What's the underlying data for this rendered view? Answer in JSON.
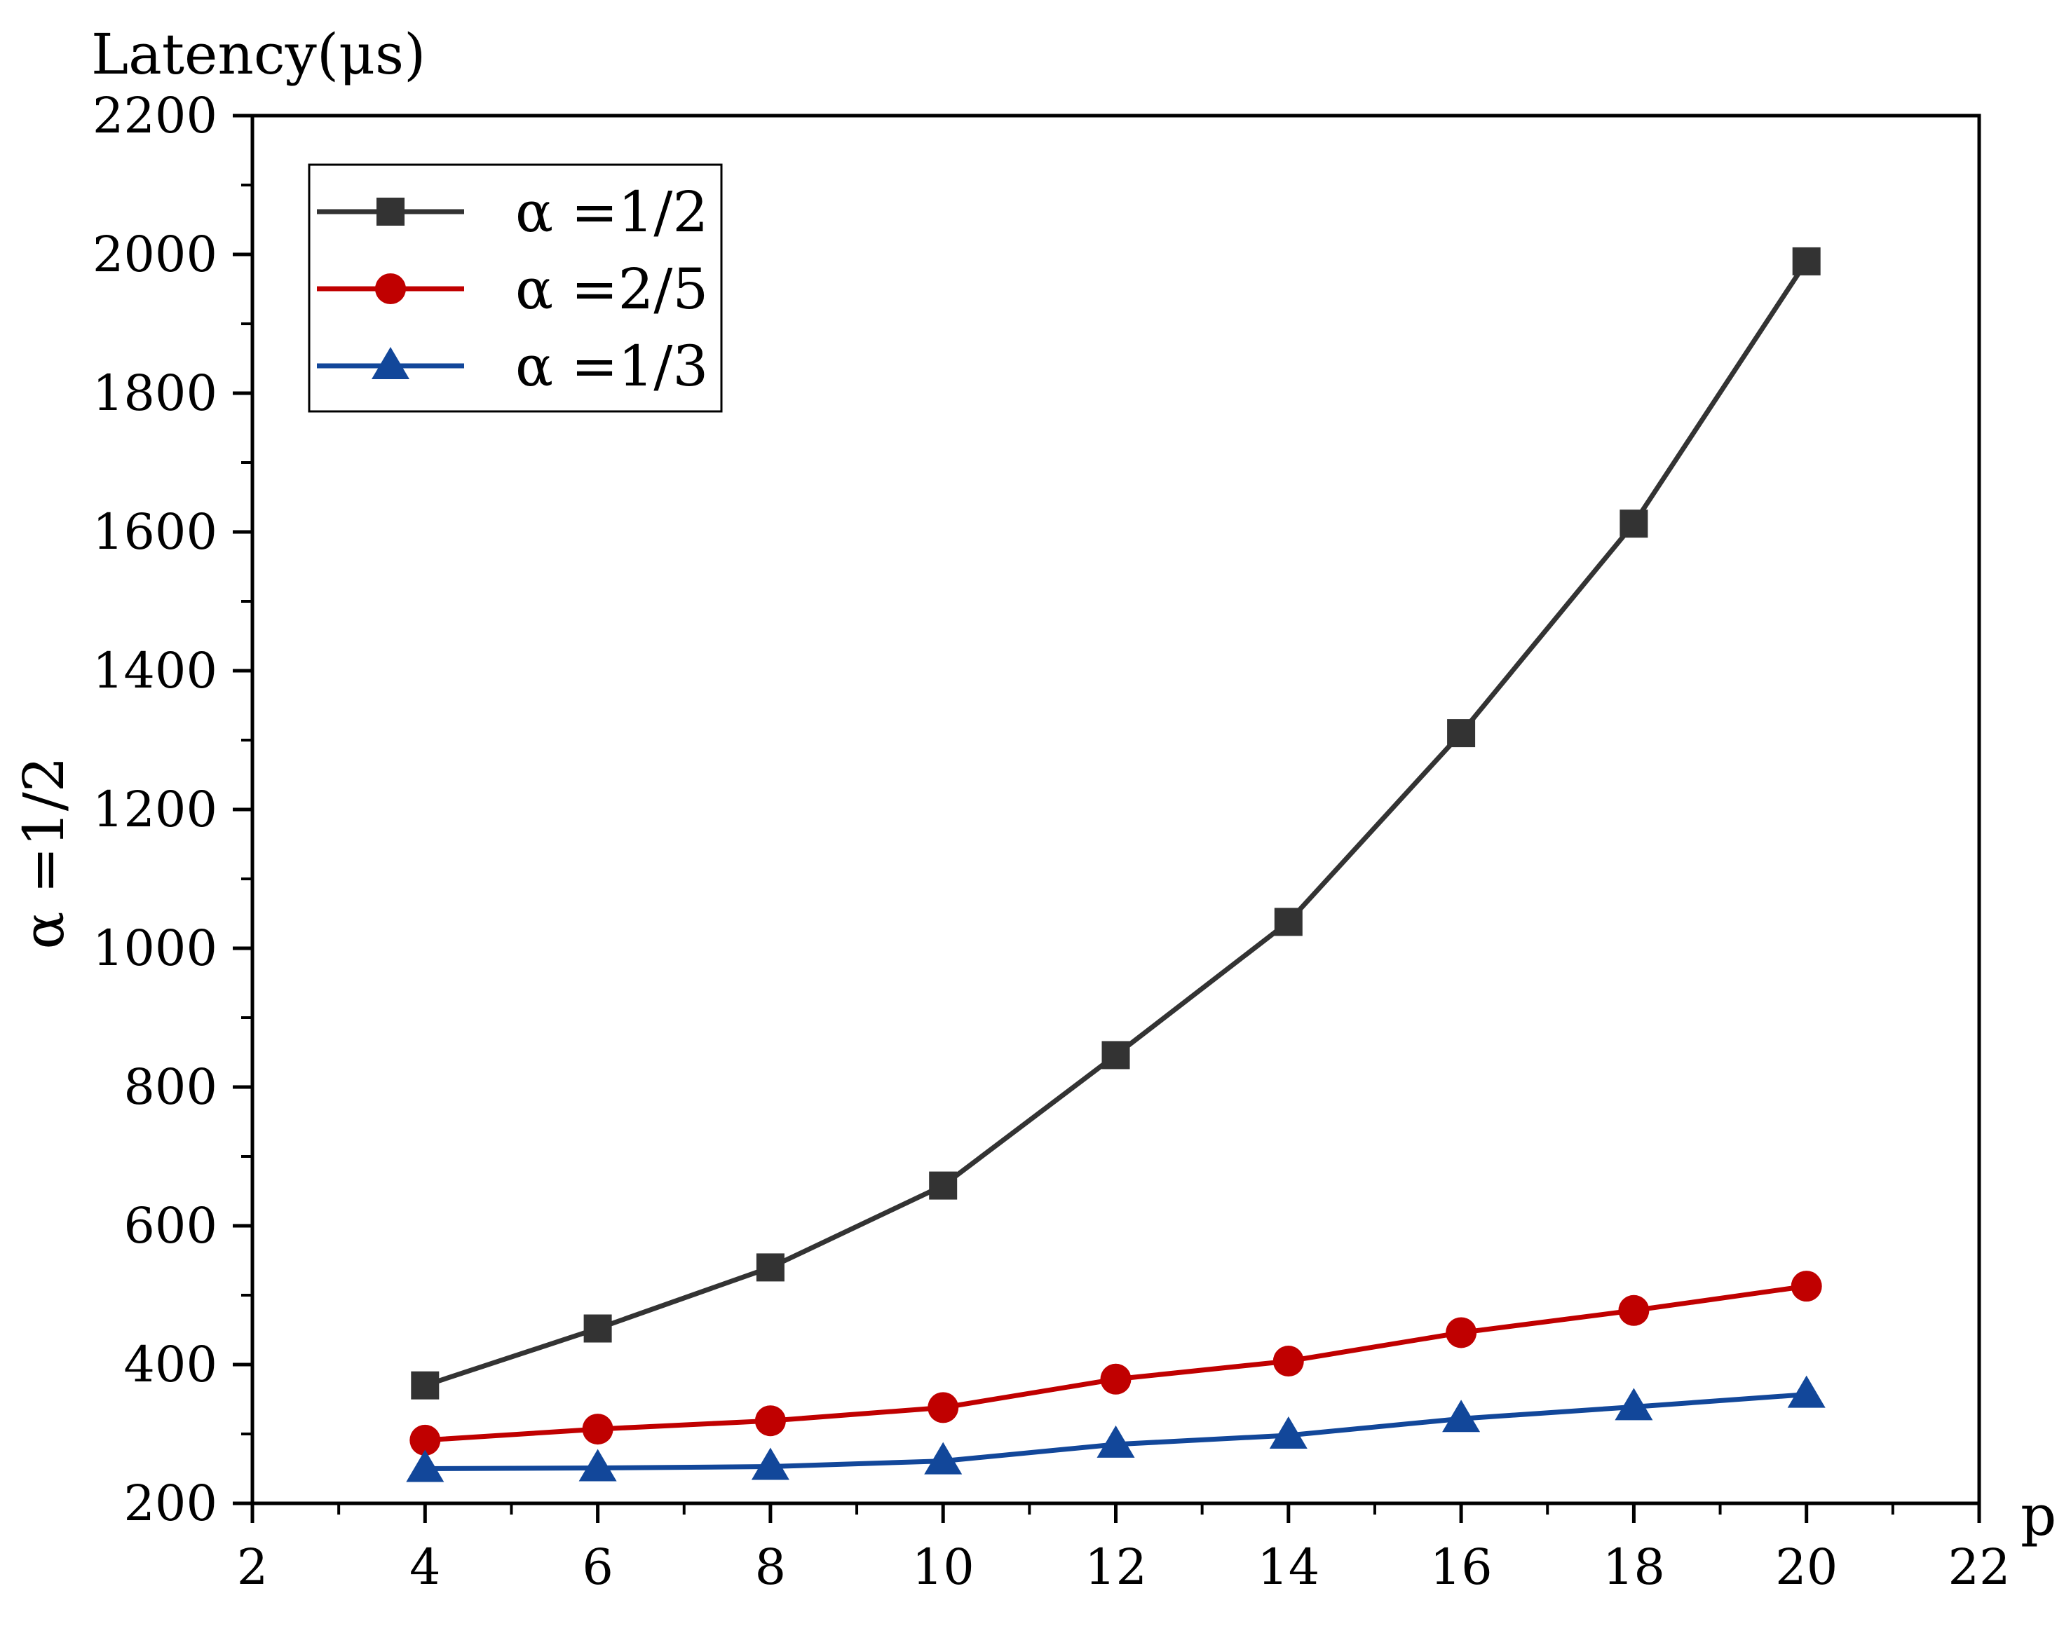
{
  "chart_data": {
    "type": "line",
    "title": "",
    "ylabel_top": "Latency(μs)",
    "ylabel_side": "α =1/2",
    "xlabel": "p",
    "xlim": [
      2,
      22
    ],
    "ylim": [
      200,
      2200
    ],
    "xticks": [
      2,
      4,
      6,
      8,
      10,
      12,
      14,
      16,
      18,
      20,
      22
    ],
    "yticks": [
      200,
      400,
      600,
      800,
      1000,
      1200,
      1400,
      1600,
      1800,
      2000,
      2200
    ],
    "grid": false,
    "legend_position": "top-left",
    "x": [
      4,
      6,
      8,
      10,
      12,
      14,
      16,
      18,
      20
    ],
    "series": [
      {
        "name": "α =1/2",
        "color": "#333333",
        "marker": "square",
        "values": [
          370,
          452,
          540,
          658,
          846,
          1038,
          1310,
          1612,
          1990
        ]
      },
      {
        "name": "α =2/5",
        "color": "#c00000",
        "marker": "circle",
        "values": [
          291,
          307,
          319,
          338,
          379,
          405,
          446,
          478,
          513
        ]
      },
      {
        "name": "α =1/3",
        "color": "#12479a",
        "marker": "triangle",
        "values": [
          250,
          251,
          253,
          261,
          285,
          298,
          322,
          339,
          357
        ]
      }
    ]
  }
}
